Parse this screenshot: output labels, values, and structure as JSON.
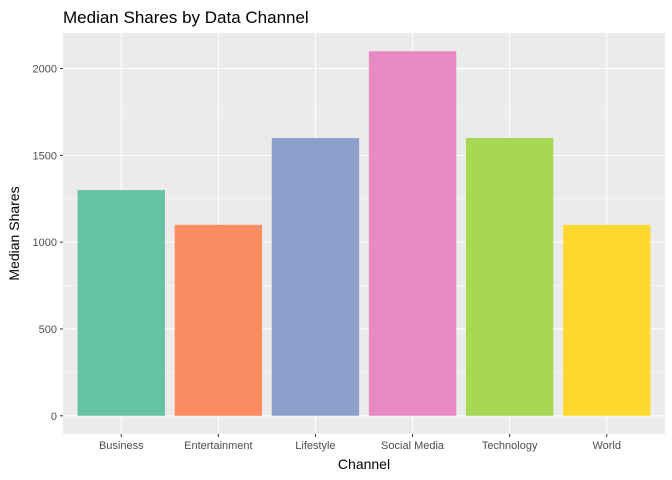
{
  "chart_data": {
    "type": "bar",
    "title": "Median Shares by Data Channel",
    "xlabel": "Channel",
    "ylabel": "Median Shares",
    "categories": [
      "Business",
      "Entertainment",
      "Lifestyle",
      "Social Media",
      "Technology",
      "World"
    ],
    "values": [
      1300,
      1100,
      1600,
      2100,
      1600,
      1100
    ],
    "colors": [
      "#66c2a5",
      "#fc8d62",
      "#8da0cb",
      "#e78ac3",
      "#a6d854",
      "#ffd92f"
    ],
    "yticks": [
      0,
      500,
      1000,
      1500,
      2000
    ],
    "ylim": [
      -105,
      2205
    ],
    "panel_background": "#ebebeb",
    "grid": true,
    "legend": "none"
  }
}
